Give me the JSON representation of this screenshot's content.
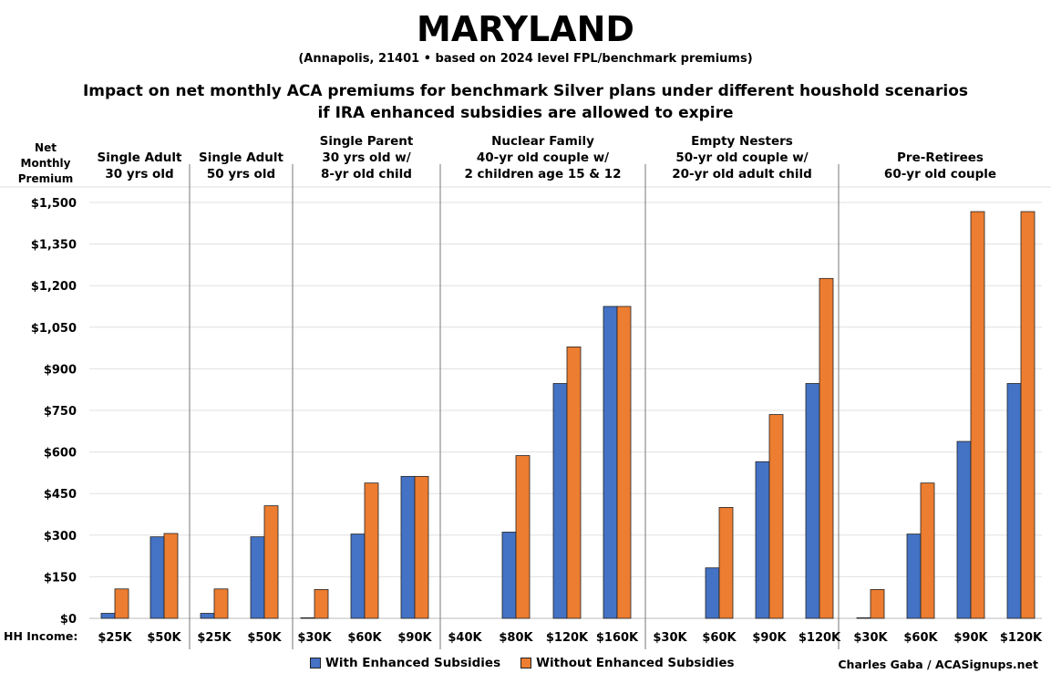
{
  "title": "MARYLAND",
  "subtitle": "(Annapolis, 21401 • based on 2024 level FPL/benchmark premiums)",
  "headline_line1": "Impact on net monthly ACA premiums for benchmark Silver plans under different houshold scenarios",
  "headline_line2": "if IRA enhanced subsidies are allowed to expire",
  "ylabel_lines": [
    "Net",
    "Monthly",
    "Premium"
  ],
  "hh_income_label": "HH Income:",
  "credit": "Charles Gaba / ACASignups.net",
  "colors": {
    "with": "#4472C4",
    "without": "#ED7D31"
  },
  "chart_data": {
    "type": "bar",
    "ylabel": "Net Monthly Premium",
    "xlabel": "HH Income:",
    "ylim": [
      0,
      1500
    ],
    "yticks": [
      "$0",
      "$150",
      "$300",
      "$450",
      "$600",
      "$750",
      "$900",
      "$1,050",
      "$1,200",
      "$1,350",
      "$1,500"
    ],
    "ytick_values": [
      0,
      150,
      300,
      450,
      600,
      750,
      900,
      1050,
      1200,
      1350,
      1500
    ],
    "grid": true,
    "legend": "bottom",
    "series_names": [
      "With Enhanced Subsidies",
      "Without Enhanced Subsidies"
    ],
    "groups": [
      {
        "label": [
          "Single Adult",
          "30 yrs old"
        ],
        "categories": [
          "$25K",
          "$50K"
        ],
        "with": [
          18,
          294
        ],
        "without": [
          106,
          306
        ]
      },
      {
        "label": [
          "Single Adult",
          "50 yrs old"
        ],
        "categories": [
          "$25K",
          "$50K"
        ],
        "with": [
          18,
          294
        ],
        "without": [
          106,
          406
        ]
      },
      {
        "label": [
          "Single Parent",
          "30 yrs old w/",
          "8-yr old child"
        ],
        "categories": [
          "$30K",
          "$60K",
          "$90K"
        ],
        "with": [
          2,
          304,
          512
        ],
        "without": [
          104,
          488,
          512
        ]
      },
      {
        "label": [
          "Nuclear Family",
          "40-yr old couple w/",
          "2 children age 15 & 12"
        ],
        "categories": [
          "$40K",
          "$80K",
          "$120K",
          "$160K"
        ],
        "with": [
          0,
          311,
          847,
          1125
        ],
        "without": [
          0,
          587,
          979,
          1125
        ]
      },
      {
        "label": [
          "Empty Nesters",
          "50-yr old couple w/",
          "20-yr old adult child"
        ],
        "categories": [
          "$30K",
          "$60K",
          "$90K",
          "$120K"
        ],
        "with": [
          0,
          182,
          565,
          847
        ],
        "without": [
          0,
          400,
          735,
          1226
        ]
      },
      {
        "label": [
          "Pre-Retirees",
          "60-yr old couple"
        ],
        "categories": [
          "$30K",
          "$60K",
          "$90K",
          "$120K"
        ],
        "with": [
          2,
          304,
          638,
          847
        ],
        "without": [
          104,
          488,
          1467,
          1467
        ]
      }
    ]
  }
}
